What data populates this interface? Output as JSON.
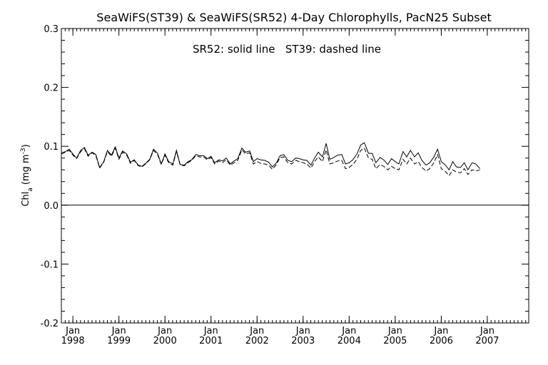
{
  "chart_data": {
    "type": "line",
    "title": "SeaWiFS(ST39) & SeaWiFS(SR52) 4-Day Chlorophylls, PacN25 Subset",
    "annotation": "SR52: solid line   ST39: dashed line",
    "ylabel": "Chl_a (mg m^-3)",
    "ylabel_main": "Chl",
    "ylabel_sub": "a",
    "ylabel_units": "(mg m",
    "ylabel_sup": "-3",
    "ylabel_close": ")",
    "ylim": [
      -0.2,
      0.3
    ],
    "xlim": [
      1997.75,
      2007.9
    ],
    "yticks": [
      {
        "v": 0.3,
        "label": "0.3"
      },
      {
        "v": 0.2,
        "label": "0.2"
      },
      {
        "v": 0.1,
        "label": "0.1"
      },
      {
        "v": 0.0,
        "label": "0.0"
      },
      {
        "v": -0.1,
        "label": "-0.1"
      },
      {
        "v": -0.2,
        "label": "-0.2"
      }
    ],
    "xticks": [
      {
        "v": 1998,
        "month": "Jan",
        "year": "1998"
      },
      {
        "v": 1999,
        "month": "Jan",
        "year": "1999"
      },
      {
        "v": 2000,
        "month": "Jan",
        "year": "2000"
      },
      {
        "v": 2001,
        "month": "Jan",
        "year": "2001"
      },
      {
        "v": 2002,
        "month": "Jan",
        "year": "2002"
      },
      {
        "v": 2003,
        "month": "Jan",
        "year": "2003"
      },
      {
        "v": 2004,
        "month": "Jan",
        "year": "2004"
      },
      {
        "v": 2005,
        "month": "Jan",
        "year": "2005"
      },
      {
        "v": 2006,
        "month": "Jan",
        "year": "2006"
      },
      {
        "v": 2007,
        "month": "Jan",
        "year": "2007"
      }
    ],
    "zero_line": 0.0,
    "series": [
      {
        "name": "SR52",
        "style": "solid",
        "color": "#000000",
        "points": [
          [
            1997.75,
            0.089
          ],
          [
            1997.84,
            0.091
          ],
          [
            1997.92,
            0.095
          ],
          [
            1998.0,
            0.087
          ],
          [
            1998.08,
            0.08
          ],
          [
            1998.17,
            0.093
          ],
          [
            1998.25,
            0.098
          ],
          [
            1998.33,
            0.085
          ],
          [
            1998.42,
            0.09
          ],
          [
            1998.5,
            0.086
          ],
          [
            1998.58,
            0.064
          ],
          [
            1998.67,
            0.074
          ],
          [
            1998.75,
            0.093
          ],
          [
            1998.84,
            0.085
          ],
          [
            1998.92,
            0.099
          ],
          [
            1999.0,
            0.08
          ],
          [
            1999.08,
            0.092
          ],
          [
            1999.17,
            0.087
          ],
          [
            1999.25,
            0.073
          ],
          [
            1999.33,
            0.077
          ],
          [
            1999.42,
            0.068
          ],
          [
            1999.5,
            0.066
          ],
          [
            1999.58,
            0.071
          ],
          [
            1999.67,
            0.078
          ],
          [
            1999.75,
            0.095
          ],
          [
            1999.84,
            0.088
          ],
          [
            1999.92,
            0.07
          ],
          [
            2000.0,
            0.087
          ],
          [
            2000.08,
            0.074
          ],
          [
            2000.17,
            0.07
          ],
          [
            2000.25,
            0.093
          ],
          [
            2000.33,
            0.069
          ],
          [
            2000.42,
            0.068
          ],
          [
            2000.5,
            0.074
          ],
          [
            2000.58,
            0.077
          ],
          [
            2000.67,
            0.086
          ],
          [
            2000.75,
            0.084
          ],
          [
            2000.84,
            0.084
          ],
          [
            2000.92,
            0.079
          ],
          [
            2001.0,
            0.083
          ],
          [
            2001.08,
            0.072
          ],
          [
            2001.17,
            0.077
          ],
          [
            2001.25,
            0.075
          ],
          [
            2001.33,
            0.08
          ],
          [
            2001.42,
            0.07
          ],
          [
            2001.5,
            0.075
          ],
          [
            2001.58,
            0.079
          ],
          [
            2001.67,
            0.097
          ],
          [
            2001.75,
            0.09
          ],
          [
            2001.84,
            0.092
          ],
          [
            2001.92,
            0.074
          ],
          [
            2002.0,
            0.079
          ],
          [
            2002.08,
            0.077
          ],
          [
            2002.17,
            0.076
          ],
          [
            2002.25,
            0.073
          ],
          [
            2002.33,
            0.065
          ],
          [
            2002.42,
            0.072
          ],
          [
            2002.5,
            0.084
          ],
          [
            2002.58,
            0.086
          ],
          [
            2002.67,
            0.076
          ],
          [
            2002.75,
            0.074
          ],
          [
            2002.84,
            0.08
          ],
          [
            2002.92,
            0.079
          ],
          [
            2003.0,
            0.077
          ],
          [
            2003.08,
            0.076
          ],
          [
            2003.17,
            0.068
          ],
          [
            2003.25,
            0.08
          ],
          [
            2003.33,
            0.09
          ],
          [
            2003.42,
            0.082
          ],
          [
            2003.5,
            0.105
          ],
          [
            2003.58,
            0.078
          ],
          [
            2003.67,
            0.081
          ],
          [
            2003.75,
            0.085
          ],
          [
            2003.84,
            0.086
          ],
          [
            2003.92,
            0.07
          ],
          [
            2004.0,
            0.072
          ],
          [
            2004.08,
            0.077
          ],
          [
            2004.17,
            0.087
          ],
          [
            2004.25,
            0.102
          ],
          [
            2004.33,
            0.106
          ],
          [
            2004.42,
            0.088
          ],
          [
            2004.5,
            0.088
          ],
          [
            2004.58,
            0.072
          ],
          [
            2004.67,
            0.081
          ],
          [
            2004.75,
            0.077
          ],
          [
            2004.84,
            0.069
          ],
          [
            2004.92,
            0.079
          ],
          [
            2005.0,
            0.074
          ],
          [
            2005.08,
            0.07
          ],
          [
            2005.17,
            0.091
          ],
          [
            2005.25,
            0.082
          ],
          [
            2005.33,
            0.093
          ],
          [
            2005.42,
            0.082
          ],
          [
            2005.5,
            0.089
          ],
          [
            2005.58,
            0.076
          ],
          [
            2005.67,
            0.068
          ],
          [
            2005.75,
            0.072
          ],
          [
            2005.84,
            0.082
          ],
          [
            2005.92,
            0.095
          ],
          [
            2006.0,
            0.074
          ],
          [
            2006.08,
            0.069
          ],
          [
            2006.17,
            0.06
          ],
          [
            2006.25,
            0.074
          ],
          [
            2006.33,
            0.065
          ],
          [
            2006.42,
            0.064
          ],
          [
            2006.5,
            0.072
          ],
          [
            2006.58,
            0.06
          ],
          [
            2006.67,
            0.072
          ],
          [
            2006.75,
            0.07
          ],
          [
            2006.84,
            0.062
          ]
        ]
      },
      {
        "name": "ST39",
        "style": "dashed",
        "color": "#000000",
        "points": [
          [
            1997.75,
            0.087
          ],
          [
            1997.84,
            0.09
          ],
          [
            1997.92,
            0.093
          ],
          [
            1998.0,
            0.085
          ],
          [
            1998.08,
            0.079
          ],
          [
            1998.17,
            0.091
          ],
          [
            1998.25,
            0.096
          ],
          [
            1998.33,
            0.083
          ],
          [
            1998.42,
            0.089
          ],
          [
            1998.5,
            0.084
          ],
          [
            1998.58,
            0.063
          ],
          [
            1998.67,
            0.073
          ],
          [
            1998.75,
            0.091
          ],
          [
            1998.84,
            0.083
          ],
          [
            1998.92,
            0.097
          ],
          [
            1999.0,
            0.078
          ],
          [
            1999.08,
            0.09
          ],
          [
            1999.17,
            0.085
          ],
          [
            1999.25,
            0.071
          ],
          [
            1999.33,
            0.076
          ],
          [
            1999.42,
            0.067
          ],
          [
            1999.5,
            0.065
          ],
          [
            1999.58,
            0.07
          ],
          [
            1999.67,
            0.077
          ],
          [
            1999.75,
            0.093
          ],
          [
            1999.84,
            0.086
          ],
          [
            1999.92,
            0.069
          ],
          [
            2000.0,
            0.085
          ],
          [
            2000.08,
            0.072
          ],
          [
            2000.17,
            0.068
          ],
          [
            2000.25,
            0.091
          ],
          [
            2000.33,
            0.068
          ],
          [
            2000.42,
            0.067
          ],
          [
            2000.5,
            0.072
          ],
          [
            2000.58,
            0.076
          ],
          [
            2000.67,
            0.084
          ],
          [
            2000.75,
            0.082
          ],
          [
            2000.84,
            0.082
          ],
          [
            2000.92,
            0.077
          ],
          [
            2001.0,
            0.081
          ],
          [
            2001.08,
            0.07
          ],
          [
            2001.17,
            0.075
          ],
          [
            2001.25,
            0.072
          ],
          [
            2001.33,
            0.077
          ],
          [
            2001.42,
            0.068
          ],
          [
            2001.5,
            0.072
          ],
          [
            2001.58,
            0.076
          ],
          [
            2001.67,
            0.094
          ],
          [
            2001.75,
            0.087
          ],
          [
            2001.84,
            0.089
          ],
          [
            2001.92,
            0.07
          ],
          [
            2002.0,
            0.074
          ],
          [
            2002.08,
            0.071
          ],
          [
            2002.17,
            0.07
          ],
          [
            2002.25,
            0.068
          ],
          [
            2002.33,
            0.061
          ],
          [
            2002.42,
            0.069
          ],
          [
            2002.5,
            0.081
          ],
          [
            2002.58,
            0.082
          ],
          [
            2002.67,
            0.072
          ],
          [
            2002.75,
            0.07
          ],
          [
            2002.84,
            0.076
          ],
          [
            2002.92,
            0.074
          ],
          [
            2003.0,
            0.072
          ],
          [
            2003.08,
            0.07
          ],
          [
            2003.17,
            0.063
          ],
          [
            2003.25,
            0.074
          ],
          [
            2003.33,
            0.082
          ],
          [
            2003.42,
            0.074
          ],
          [
            2003.5,
            0.094
          ],
          [
            2003.58,
            0.07
          ],
          [
            2003.67,
            0.072
          ],
          [
            2003.75,
            0.075
          ],
          [
            2003.84,
            0.076
          ],
          [
            2003.92,
            0.062
          ],
          [
            2004.0,
            0.064
          ],
          [
            2004.08,
            0.069
          ],
          [
            2004.17,
            0.078
          ],
          [
            2004.25,
            0.093
          ],
          [
            2004.33,
            0.097
          ],
          [
            2004.42,
            0.08
          ],
          [
            2004.5,
            0.078
          ],
          [
            2004.58,
            0.062
          ],
          [
            2004.67,
            0.069
          ],
          [
            2004.75,
            0.066
          ],
          [
            2004.84,
            0.06
          ],
          [
            2004.92,
            0.066
          ],
          [
            2005.0,
            0.062
          ],
          [
            2005.08,
            0.06
          ],
          [
            2005.17,
            0.078
          ],
          [
            2005.25,
            0.07
          ],
          [
            2005.33,
            0.08
          ],
          [
            2005.42,
            0.07
          ],
          [
            2005.5,
            0.074
          ],
          [
            2005.58,
            0.064
          ],
          [
            2005.67,
            0.058
          ],
          [
            2005.75,
            0.062
          ],
          [
            2005.84,
            0.072
          ],
          [
            2005.92,
            0.086
          ],
          [
            2006.0,
            0.062
          ],
          [
            2006.08,
            0.058
          ],
          [
            2006.17,
            0.05
          ],
          [
            2006.25,
            0.06
          ],
          [
            2006.33,
            0.056
          ],
          [
            2006.42,
            0.055
          ],
          [
            2006.5,
            0.062
          ],
          [
            2006.58,
            0.052
          ],
          [
            2006.67,
            0.06
          ],
          [
            2006.75,
            0.058
          ],
          [
            2006.84,
            0.06
          ]
        ]
      }
    ]
  }
}
